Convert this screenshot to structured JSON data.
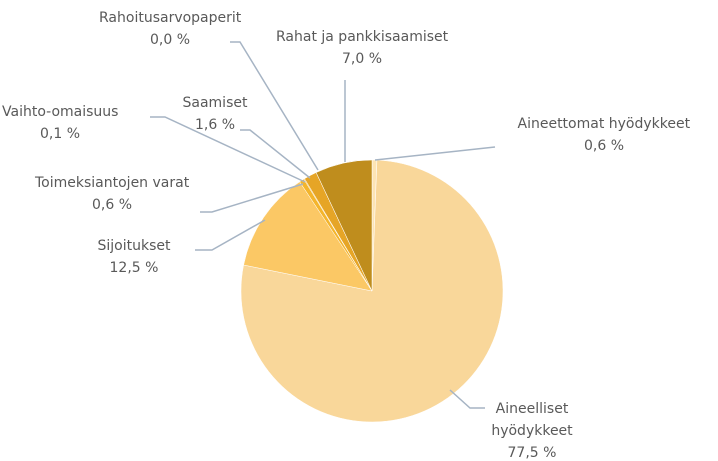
{
  "chart_data": {
    "type": "pie",
    "categories": [
      "Aineettomat hyödykkeet",
      "Aineelliset hyödykkeet",
      "Sijoitukset",
      "Toimeksiantojen varat",
      "Vaihto-omaisuus",
      "Saamiset",
      "Rahoitusarvopaperit",
      "Rahat ja pankkisaamiset"
    ],
    "values": [
      0.6,
      77.5,
      12.5,
      0.6,
      0.1,
      1.6,
      0.0,
      7.0
    ],
    "value_labels": [
      "0,6 %",
      "77,5 %",
      "12,5 %",
      "0,6 %",
      "0,1 %",
      "1,6 %",
      "0,0 %",
      "7,0 %"
    ],
    "colors": [
      "#fde4b4",
      "#f9d79a",
      "#fbc865",
      "#f4b52c",
      "#e9a414",
      "#e6a526",
      "#d0991c",
      "#bf8d1d"
    ]
  }
}
